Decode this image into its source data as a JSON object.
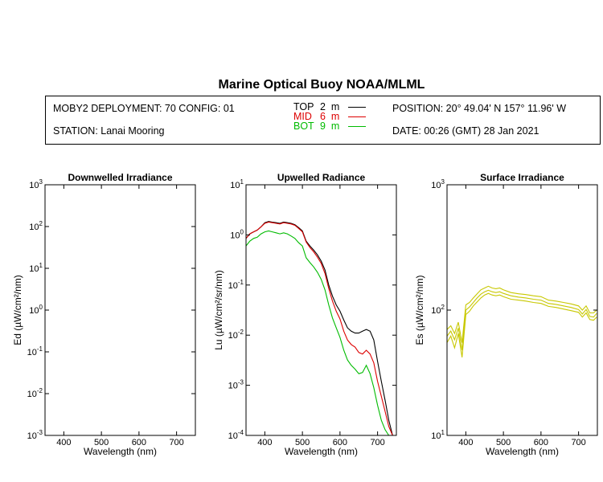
{
  "header": {
    "title": "Marine Optical Buoy NOAA/MLML",
    "deployment": "MOBY2 DEPLOYMENT: 70 CONFIG: 01",
    "station": "STATION: Lanai Mooring",
    "position": "POSITION: 20° 49.04' N   157° 11.96' W",
    "date": "DATE: 00:26 (GMT) 28 Jan 2021",
    "legend": [
      {
        "label": "TOP",
        "depth": "2",
        "unit": "m",
        "color": "#000000"
      },
      {
        "label": "MID",
        "depth": "6",
        "unit": "m",
        "color": "#dd0000"
      },
      {
        "label": "BOT",
        "depth": "9",
        "unit": "m",
        "color": "#00bb00"
      }
    ]
  },
  "chart_data": [
    {
      "type": "line",
      "title": "Downwelled Irradiance",
      "xlabel": "Wavelength (nm)",
      "ylabel": "Ed  (µW/cm²/nm)",
      "xlim": [
        350,
        750
      ],
      "ylim": [
        0.001,
        1000
      ],
      "yscale": "log",
      "xticks": [
        400,
        500,
        600,
        700
      ],
      "yticks": [
        {
          "base": "10",
          "exp": "-3"
        },
        {
          "base": "10",
          "exp": "-2"
        },
        {
          "base": "10",
          "exp": "-1"
        },
        {
          "base": "10",
          "exp": "0"
        },
        {
          "base": "10",
          "exp": "1"
        },
        {
          "base": "10",
          "exp": "2"
        },
        {
          "base": "10",
          "exp": "3"
        }
      ],
      "series": []
    },
    {
      "type": "line",
      "title": "Upwelled Radiance",
      "xlabel": "Wavelength (nm)",
      "ylabel": "Lu  (µW/cm²/sr/nm)",
      "xlim": [
        350,
        750
      ],
      "ylim": [
        0.0001,
        10
      ],
      "yscale": "log",
      "xticks": [
        400,
        500,
        600,
        700
      ],
      "yticks": [
        {
          "base": "10",
          "exp": "-4"
        },
        {
          "base": "10",
          "exp": "-3"
        },
        {
          "base": "10",
          "exp": "-2"
        },
        {
          "base": "10",
          "exp": "-1"
        },
        {
          "base": "10",
          "exp": "0"
        },
        {
          "base": "10",
          "exp": "1"
        }
      ],
      "series": [
        {
          "color": "#000000",
          "x": [
            350,
            360,
            370,
            380,
            390,
            400,
            410,
            420,
            430,
            440,
            450,
            460,
            470,
            480,
            490,
            500,
            510,
            520,
            530,
            540,
            550,
            560,
            570,
            580,
            590,
            600,
            610,
            620,
            630,
            640,
            650,
            660,
            670,
            680,
            690,
            700,
            710,
            720,
            730,
            740,
            748
          ],
          "y": [
            0.85,
            1.05,
            1.15,
            1.25,
            1.45,
            1.75,
            1.85,
            1.8,
            1.75,
            1.7,
            1.8,
            1.75,
            1.7,
            1.6,
            1.4,
            1.2,
            0.75,
            0.6,
            0.5,
            0.4,
            0.3,
            0.2,
            0.1,
            0.06,
            0.04,
            0.03,
            0.02,
            0.014,
            0.012,
            0.011,
            0.011,
            0.012,
            0.013,
            0.012,
            0.008,
            0.003,
            0.0012,
            0.0005,
            0.0002,
            0.0001,
            0.0001
          ]
        },
        {
          "color": "#dd0000",
          "x": [
            350,
            360,
            370,
            380,
            390,
            400,
            410,
            420,
            430,
            440,
            450,
            460,
            470,
            480,
            490,
            500,
            510,
            520,
            530,
            540,
            550,
            560,
            570,
            580,
            590,
            600,
            610,
            620,
            630,
            640,
            650,
            660,
            670,
            680,
            690,
            700,
            710,
            720,
            730,
            740,
            748
          ],
          "y": [
            0.85,
            1.05,
            1.15,
            1.25,
            1.45,
            1.7,
            1.8,
            1.75,
            1.7,
            1.65,
            1.75,
            1.7,
            1.65,
            1.55,
            1.35,
            1.15,
            0.72,
            0.56,
            0.46,
            0.36,
            0.27,
            0.17,
            0.085,
            0.048,
            0.03,
            0.021,
            0.012,
            0.008,
            0.0065,
            0.0058,
            0.0045,
            0.0042,
            0.005,
            0.0042,
            0.0028,
            0.0012,
            0.0006,
            0.0003,
            0.00015,
            0.0001,
            0.0001
          ]
        },
        {
          "color": "#00bb00",
          "x": [
            350,
            360,
            370,
            380,
            390,
            400,
            410,
            420,
            430,
            440,
            450,
            460,
            470,
            480,
            490,
            500,
            510,
            520,
            530,
            540,
            550,
            560,
            570,
            580,
            590,
            600,
            610,
            620,
            630,
            640,
            650,
            660,
            670,
            680,
            690,
            700,
            710,
            720,
            730,
            740,
            748
          ],
          "y": [
            0.6,
            0.75,
            0.85,
            0.9,
            1.05,
            1.15,
            1.2,
            1.15,
            1.1,
            1.05,
            1.1,
            1.05,
            0.95,
            0.85,
            0.7,
            0.6,
            0.35,
            0.28,
            0.23,
            0.18,
            0.13,
            0.08,
            0.04,
            0.022,
            0.014,
            0.009,
            0.005,
            0.0032,
            0.0025,
            0.0021,
            0.0017,
            0.0018,
            0.0025,
            0.0017,
            0.0009,
            0.0004,
            0.0002,
            0.00013,
            0.0001,
            0.0001,
            0.0001
          ]
        }
      ]
    },
    {
      "type": "line",
      "title": "Surface Irradiance",
      "xlabel": "Wavelength (nm)",
      "ylabel": "Es  (µW/cm²/nm)",
      "xlim": [
        350,
        750
      ],
      "ylim": [
        10,
        1000
      ],
      "yscale": "log",
      "xticks": [
        400,
        500,
        600,
        700
      ],
      "yticks": [
        {
          "base": "10",
          "exp": "1"
        },
        {
          "base": "10",
          "exp": "2"
        },
        {
          "base": "10",
          "exp": "3"
        }
      ],
      "series": [
        {
          "color": "#c8c800",
          "x": [
            350,
            360,
            370,
            380,
            390,
            400,
            410,
            420,
            430,
            440,
            450,
            460,
            470,
            480,
            490,
            500,
            520,
            540,
            560,
            580,
            600,
            620,
            640,
            660,
            680,
            700,
            710,
            720,
            730,
            740,
            748
          ],
          "y": [
            70,
            75,
            65,
            80,
            55,
            110,
            115,
            125,
            135,
            145,
            150,
            155,
            150,
            148,
            150,
            145,
            138,
            135,
            133,
            130,
            128,
            120,
            118,
            115,
            112,
            108,
            100,
            108,
            95,
            95,
            100
          ]
        },
        {
          "color": "#c8c800",
          "x": [
            350,
            360,
            370,
            380,
            390,
            400,
            410,
            420,
            430,
            440,
            450,
            460,
            470,
            480,
            490,
            500,
            520,
            540,
            560,
            580,
            600,
            620,
            640,
            660,
            680,
            700,
            710,
            720,
            730,
            740,
            748
          ],
          "y": [
            62,
            68,
            58,
            72,
            48,
            100,
            106,
            115,
            125,
            134,
            140,
            144,
            140,
            138,
            140,
            136,
            130,
            127,
            125,
            122,
            120,
            113,
            111,
            108,
            105,
            101,
            93,
            101,
            89,
            88,
            94
          ]
        },
        {
          "color": "#c8c800",
          "x": [
            350,
            360,
            370,
            380,
            390,
            400,
            410,
            420,
            430,
            440,
            450,
            460,
            470,
            480,
            490,
            500,
            520,
            540,
            560,
            580,
            600,
            620,
            640,
            660,
            680,
            700,
            710,
            720,
            730,
            740,
            748
          ],
          "y": [
            55,
            62,
            50,
            65,
            42,
            92,
            98,
            108,
            116,
            125,
            132,
            136,
            132,
            130,
            132,
            128,
            122,
            120,
            118,
            115,
            113,
            107,
            105,
            102,
            99,
            96,
            88,
            95,
            84,
            83,
            88
          ]
        }
      ]
    }
  ]
}
